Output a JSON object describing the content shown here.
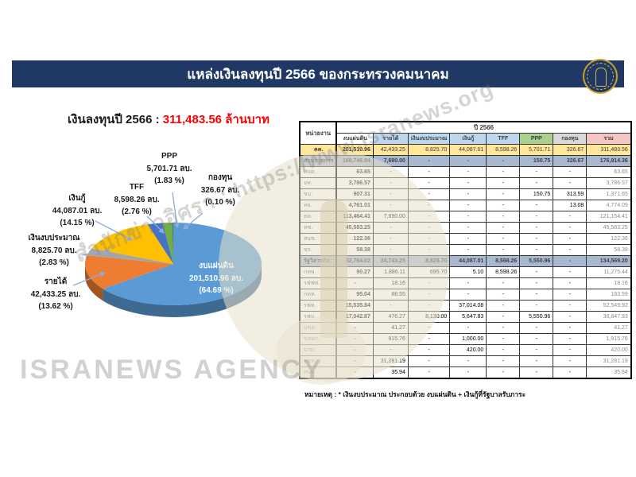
{
  "title_bar": {
    "title": "แหล่งเงินลงทุนปี 2566 ของกระทรวงคมนาคม"
  },
  "subtitle": {
    "label": "เงินลงทุนปี 2566 :",
    "value": "311,483.56 ล้านบาท"
  },
  "note": "หมายเหตุ :  * เงินงบประมาณ ประกอบด้วย งบแผ่นดิน + เงินกู้ที่รัฐบาลรับภาระ",
  "watermark": {
    "diagonal": "สำนักข่าวอิศรา : https://www.isranews.org",
    "agency": "ISRANEWS AGENCY"
  },
  "chart_data": [
    {
      "type": "pie",
      "title": "เงินลงทุนปี 2566 : 311,483.56 ล้านบาท",
      "unit": "ล้านบาท",
      "total": 311483.56,
      "legend_position": "none",
      "style": "3d",
      "slices": [
        {
          "label": "งบแผ่นดิน",
          "value": 201510.96,
          "pct": 64.69,
          "value_text": "201,510.96 ลบ.",
          "pct_text": "(64.69 %)",
          "color": "#5b9bd5"
        },
        {
          "label": "รายได้",
          "value": 42433.25,
          "pct": 13.62,
          "value_text": "42,433.25 ลบ.",
          "pct_text": "(13.62 %)",
          "color": "#ed7d31"
        },
        {
          "label": "เงินงบประมาณ",
          "value": 8825.7,
          "pct": 2.83,
          "value_text": "8,825.70 ลบ.",
          "pct_text": "(2.83 %)",
          "color": "#a5a5a5"
        },
        {
          "label": "เงินกู้",
          "value": 44087.01,
          "pct": 14.15,
          "value_text": "44,087.01 ลบ.",
          "pct_text": "(14.15 %)",
          "color": "#ffc000"
        },
        {
          "label": "TFF",
          "value": 8598.26,
          "pct": 2.76,
          "value_text": "8,598.26 ลบ.",
          "pct_text": "(2.76 %)",
          "color": "#4472c4"
        },
        {
          "label": "PPP",
          "value": 5701.71,
          "pct": 1.83,
          "value_text": "5,701.71 ลบ.",
          "pct_text": "(1.83 %)",
          "color": "#70ad47"
        },
        {
          "label": "กองทุน",
          "value": 326.67,
          "pct": 0.1,
          "value_text": "326.67 ลบ.",
          "pct_text": "(0.10 %)",
          "color": "#264478"
        }
      ]
    },
    {
      "type": "table",
      "unit_header": "หน่วยงาน",
      "year_header": "ปี 2566",
      "columns": [
        "งบแผ่นดิน",
        "รายได้",
        "เงินงบประมาณ",
        "เงินกู้",
        "TFF",
        "PPP",
        "กองทุน",
        "รวม"
      ],
      "rows": [
        {
          "label": "คค.",
          "type": "total",
          "values": [
            "201,510.96",
            "42,433.25",
            "8,825.70",
            "44,087.01",
            "8,598.26",
            "5,701.71",
            "326.67",
            "311,483.56"
          ]
        },
        {
          "label": "ส่วนราชการ",
          "type": "group",
          "values": [
            "168,746.94",
            "7,690.00",
            "-",
            "-",
            "-",
            "150.75",
            "326.67",
            "176,914.36"
          ]
        },
        {
          "label": "สปค.",
          "type": "item",
          "values": [
            "63.65",
            "-",
            "-",
            "-",
            "-",
            "-",
            "-",
            "63.65"
          ]
        },
        {
          "label": "จท.",
          "type": "item",
          "values": [
            "3,786.57",
            "-",
            "-",
            "-",
            "-",
            "-",
            "-",
            "3,786.57"
          ]
        },
        {
          "label": "ขบ.",
          "type": "item",
          "values": [
            "907.31",
            "-",
            "-",
            "-",
            "-",
            "150.75",
            "313.59",
            "1,371.65"
          ]
        },
        {
          "label": "ทย.",
          "type": "item",
          "values": [
            "4,761.01",
            "-",
            "-",
            "-",
            "-",
            "-",
            "13.08",
            "4,774.09"
          ]
        },
        {
          "label": "ทล.",
          "type": "item",
          "values": [
            "113,464.41",
            "7,690.00",
            "-",
            "-",
            "-",
            "-",
            "-",
            "121,154.41"
          ]
        },
        {
          "label": "ทช.",
          "type": "item",
          "values": [
            "45,583.25",
            "-",
            "-",
            "-",
            "-",
            "-",
            "-",
            "45,583.25"
          ]
        },
        {
          "label": "สนข.",
          "type": "item",
          "values": [
            "122.36",
            "-",
            "-",
            "-",
            "-",
            "-",
            "-",
            "122.36"
          ]
        },
        {
          "label": "ขร.",
          "type": "item",
          "values": [
            "58.38",
            "-",
            "-",
            "-",
            "-",
            "-",
            "-",
            "58.38"
          ]
        },
        {
          "label": "รัฐวิสาหกิจ",
          "type": "group",
          "values": [
            "32,764.02",
            "34,743.25",
            "8,825.70",
            "44,087.01",
            "8,598.26",
            "5,550.96",
            "-",
            "134,569.20"
          ]
        },
        {
          "label": "กทพ.",
          "type": "item",
          "values": [
            "90.27",
            "1,886.11",
            "695.70",
            "5.10",
            "8,598.26",
            "-",
            "-",
            "11,275.44"
          ]
        },
        {
          "label": "รฟฟท.",
          "type": "item",
          "values": [
            "-",
            "18.16",
            "-",
            "-",
            "-",
            "-",
            "-",
            "18.16"
          ]
        },
        {
          "label": "กทท.",
          "type": "item",
          "values": [
            "95.04",
            "88.55",
            "-",
            "-",
            "-",
            "-",
            "-",
            "183.59"
          ]
        },
        {
          "label": "รฟท.",
          "type": "item",
          "values": [
            "15,535.84",
            "-",
            "-",
            "37,014.08",
            "-",
            "-",
            "-",
            "52,549.92"
          ]
        },
        {
          "label": "รฟม.",
          "type": "item",
          "values": [
            "17,042.87",
            "476.27",
            "8,130.00",
            "5,647.83",
            "-",
            "5,550.96",
            "-",
            "36,847.93"
          ]
        },
        {
          "label": "บขส.",
          "type": "item",
          "values": [
            "-",
            "41.27",
            "-",
            "-",
            "-",
            "-",
            "-",
            "41.27"
          ]
        },
        {
          "label": "ขสมก.",
          "type": "item",
          "values": [
            "-",
            "915.76",
            "-",
            "1,000.00",
            "-",
            "-",
            "-",
            "1,915.76"
          ]
        },
        {
          "label": "บวท.",
          "type": "item",
          "values": [
            "-",
            "-",
            "-",
            "420.00",
            "-",
            "-",
            "-",
            "420.00"
          ]
        },
        {
          "label": "ทอท.",
          "type": "item",
          "values": [
            "-",
            "31,281.19",
            "-",
            "-",
            "-",
            "-",
            "-",
            "31,281.19"
          ]
        },
        {
          "label": "สบพ.",
          "type": "item",
          "values": [
            "-",
            "35.94",
            "-",
            "-",
            "-",
            "-",
            "-",
            "35.94"
          ]
        }
      ]
    }
  ]
}
